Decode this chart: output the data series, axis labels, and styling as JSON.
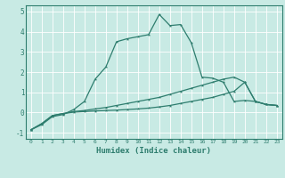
{
  "xlabel": "Humidex (Indice chaleur)",
  "ylabel": "",
  "bg_color": "#c8eae4",
  "grid_color": "#ffffff",
  "line_color": "#2e7d6e",
  "xlim": [
    -0.5,
    23.5
  ],
  "ylim": [
    -1.3,
    5.3
  ],
  "xticks": [
    0,
    1,
    2,
    3,
    4,
    5,
    6,
    7,
    8,
    9,
    10,
    11,
    12,
    13,
    14,
    15,
    16,
    17,
    18,
    19,
    20,
    21,
    22,
    23
  ],
  "yticks": [
    -1,
    0,
    1,
    2,
    3,
    4,
    5
  ],
  "line1_x": [
    0,
    1,
    2,
    3,
    4,
    5,
    6,
    7,
    8,
    9,
    10,
    11,
    12,
    13,
    14,
    15,
    16,
    17,
    18,
    19,
    20,
    21,
    22,
    23
  ],
  "line1_y": [
    -0.85,
    -0.6,
    -0.2,
    -0.1,
    0.15,
    0.55,
    1.65,
    2.25,
    3.5,
    3.65,
    3.75,
    3.85,
    4.85,
    4.3,
    4.35,
    3.45,
    1.75,
    1.7,
    1.5,
    0.55,
    0.6,
    0.55,
    0.4,
    0.35
  ],
  "line2_x": [
    0,
    1,
    2,
    3,
    4,
    5,
    6,
    7,
    8,
    9,
    10,
    11,
    12,
    13,
    14,
    15,
    16,
    17,
    18,
    19,
    20,
    21,
    22,
    23
  ],
  "line2_y": [
    -0.85,
    -0.55,
    -0.15,
    -0.05,
    0.05,
    0.1,
    0.18,
    0.25,
    0.35,
    0.45,
    0.55,
    0.65,
    0.75,
    0.9,
    1.05,
    1.2,
    1.35,
    1.5,
    1.65,
    1.75,
    1.5,
    0.55,
    0.4,
    0.35
  ],
  "line3_x": [
    0,
    1,
    2,
    3,
    4,
    5,
    6,
    7,
    8,
    9,
    10,
    11,
    12,
    13,
    14,
    15,
    16,
    17,
    18,
    19,
    20,
    21,
    22,
    23
  ],
  "line3_y": [
    -0.85,
    -0.55,
    -0.15,
    -0.05,
    0.02,
    0.05,
    0.08,
    0.1,
    0.12,
    0.15,
    0.18,
    0.22,
    0.28,
    0.35,
    0.45,
    0.55,
    0.65,
    0.75,
    0.9,
    1.05,
    1.5,
    0.55,
    0.4,
    0.35
  ]
}
